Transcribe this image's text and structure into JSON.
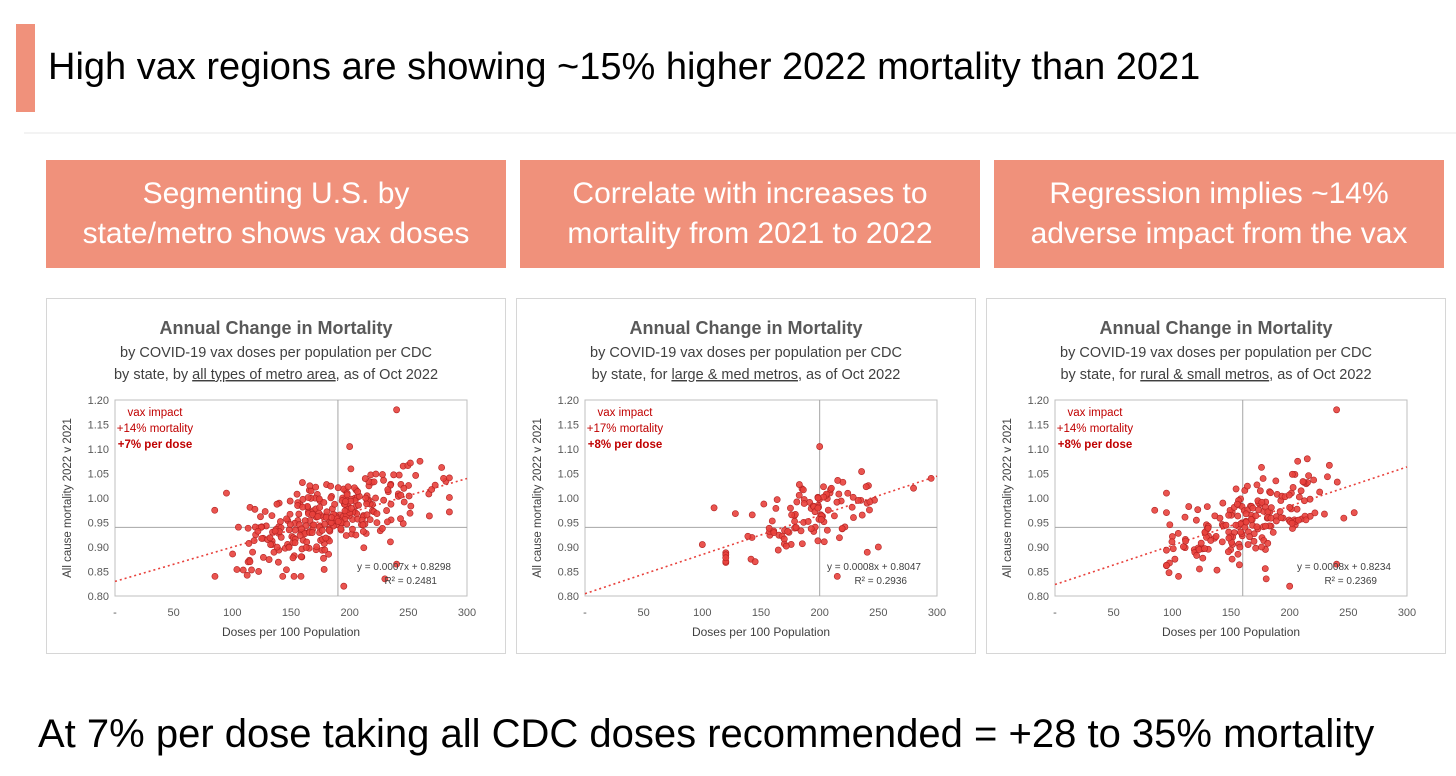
{
  "slide": {
    "title": "High vax regions are showing ~15% higher 2022 mortality than 2021",
    "footer": "At 7% per dose taking all CDC doses recommended = +28 to 35% mortality",
    "accent_color": "#f0917b"
  },
  "banners": [
    {
      "line1": "Segmenting U.S. by",
      "line2": "state/metro shows vax doses"
    },
    {
      "line1": "Correlate with increases to",
      "line2": "mortality from 2021 to 2022"
    },
    {
      "line1": "Regression implies ~14%",
      "line2": "adverse impact from the vax"
    }
  ],
  "chart_data": [
    {
      "type": "scatter",
      "title": "Annual Change in Mortality",
      "subtitle1": "by COVID-19 vax doses per population per CDC",
      "subtitle2_pre": "by state, by ",
      "subtitle2_ul": "all types of metro area",
      "subtitle2_post": ", as of Oct 2022",
      "xlabel": "Doses per 100 Population",
      "ylabel": "All cause mortality 2022 v 2021",
      "xlim": [
        0,
        300
      ],
      "ylim": [
        0.8,
        1.2
      ],
      "xticks": [
        "-",
        "50",
        "100",
        "150",
        "200",
        "250",
        "300"
      ],
      "yticks": [
        "0.80",
        "0.85",
        "0.90",
        "0.95",
        "1.00",
        "1.05",
        "1.10",
        "1.15",
        "1.20"
      ],
      "ref_x": 190,
      "ref_y": 0.94,
      "trend": {
        "slope": 0.0007,
        "intercept": 0.8298
      },
      "equation": "y = 0.0007x + 0.8298",
      "r2": "R² = 0.2481",
      "annotation": {
        "line1": "vax impact",
        "line2": "+14% mortality",
        "line3": "+7% per dose"
      },
      "point_color": "#e8413c",
      "trend_color": "#e8413c",
      "cloud": {
        "n": 300,
        "seed": 7,
        "xmin": 85,
        "xmax": 285,
        "xmean": 180,
        "xsd": 38,
        "slope": 0.0007,
        "intercept": 0.8298,
        "noise": 0.038
      },
      "points": [
        [
          240,
          1.18
        ],
        [
          200,
          1.105
        ],
        [
          85,
          0.975
        ],
        [
          95,
          1.01
        ],
        [
          195,
          0.82
        ],
        [
          230,
          0.835
        ],
        [
          240,
          0.865
        ],
        [
          280,
          1.04
        ],
        [
          115,
          0.87
        ]
      ]
    },
    {
      "type": "scatter",
      "title": "Annual Change in Mortality",
      "subtitle1": "by COVID-19 vax doses per population per CDC",
      "subtitle2_pre": "by state, for ",
      "subtitle2_ul": "large & med metros",
      "subtitle2_post": ", as of Oct 2022",
      "xlabel": "Doses per 100 Population",
      "ylabel": "All cause mortality 2022 v 2021",
      "xlim": [
        0,
        300
      ],
      "ylim": [
        0.8,
        1.2
      ],
      "xticks": [
        "-",
        "50",
        "100",
        "150",
        "200",
        "250",
        "300"
      ],
      "yticks": [
        "0.80",
        "0.85",
        "0.90",
        "0.95",
        "1.00",
        "1.05",
        "1.10",
        "1.15",
        "1.20"
      ],
      "ref_x": 200,
      "ref_y": 0.94,
      "trend": {
        "slope": 0.0008,
        "intercept": 0.8047
      },
      "equation": "y = 0.0008x + 0.8047",
      "r2": "R² = 0.2936",
      "annotation": {
        "line1": "vax impact",
        "line2": "+17% mortality",
        "line3": "+8% per dose"
      },
      "point_color": "#e8413c",
      "trend_color": "#e8413c",
      "cloud": {
        "n": 105,
        "seed": 21,
        "xmin": 120,
        "xmax": 275,
        "xmean": 195,
        "xsd": 32,
        "slope": 0.0008,
        "intercept": 0.8047,
        "noise": 0.035
      },
      "points": [
        [
          200,
          1.105
        ],
        [
          100,
          0.905
        ],
        [
          110,
          0.98
        ],
        [
          215,
          0.84
        ],
        [
          250,
          0.9
        ],
        [
          295,
          1.04
        ],
        [
          280,
          1.02
        ],
        [
          145,
          0.87
        ]
      ]
    },
    {
      "type": "scatter",
      "title": "Annual Change in Mortality",
      "subtitle1": "by COVID-19 vax doses per population per CDC",
      "subtitle2_pre": "by state, for ",
      "subtitle2_ul": "rural & small metros",
      "subtitle2_post": ", as of Oct 2022",
      "xlabel": "Doses per 100 Population",
      "ylabel": "All cause mortality 2022 v 2021",
      "xlim": [
        0,
        300
      ],
      "ylim": [
        0.8,
        1.2
      ],
      "xticks": [
        "-",
        "50",
        "100",
        "150",
        "200",
        "250",
        "300"
      ],
      "yticks": [
        "0.80",
        "0.85",
        "0.90",
        "0.95",
        "1.00",
        "1.05",
        "1.10",
        "1.15",
        "1.20"
      ],
      "ref_x": 160,
      "ref_y": 0.94,
      "trend": {
        "slope": 0.0008,
        "intercept": 0.8234
      },
      "equation": "y = 0.0008x + 0.8234",
      "r2": "R² = 0.2369",
      "annotation": {
        "line1": "vax impact",
        "line2": "+14% mortality",
        "line3": "+8% per dose"
      },
      "point_color": "#e8413c",
      "trend_color": "#e8413c",
      "cloud": {
        "n": 190,
        "seed": 33,
        "xmin": 95,
        "xmax": 255,
        "xmean": 165,
        "xsd": 35,
        "slope": 0.0008,
        "intercept": 0.8234,
        "noise": 0.036
      },
      "points": [
        [
          240,
          1.18
        ],
        [
          85,
          0.975
        ],
        [
          95,
          1.01
        ],
        [
          200,
          0.82
        ],
        [
          180,
          0.835
        ],
        [
          240,
          0.865
        ],
        [
          255,
          0.97
        ],
        [
          215,
          1.08
        ]
      ]
    }
  ]
}
